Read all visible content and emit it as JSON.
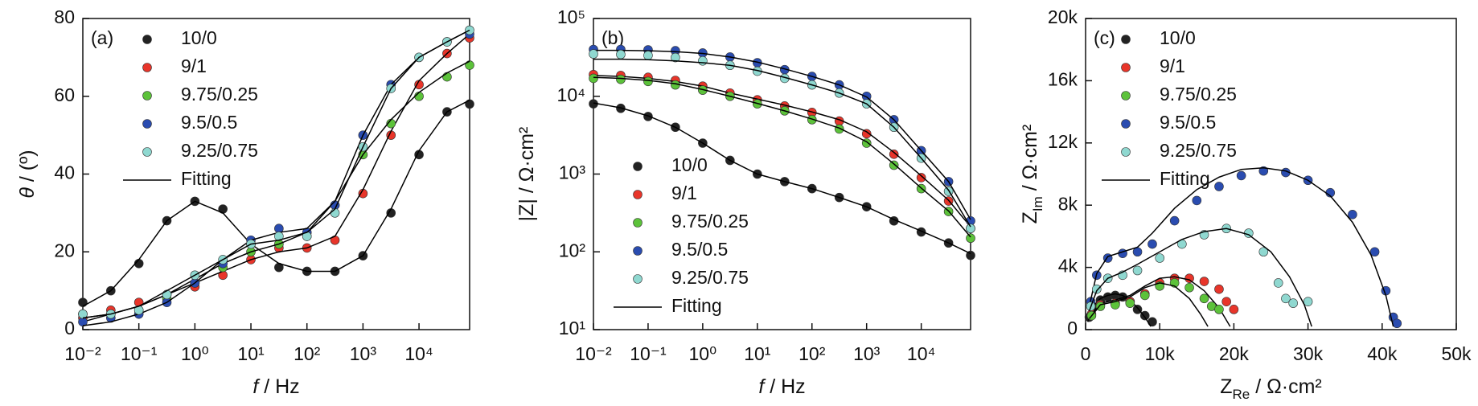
{
  "chart_data": [
    {
      "type": "line",
      "title": "(a)",
      "xscale": "log",
      "legend": "upper left",
      "fit_name": "Fitting",
      "fit_color": "#000000",
      "x_label": [
        "f",
        " / Hz"
      ],
      "y_label": [
        "θ",
        " / (º)"
      ],
      "xlim": [
        0.01,
        80000
      ],
      "ylim": [
        0,
        80
      ],
      "xticks": [
        {
          "value": 0.01,
          "label": "10⁻²"
        },
        {
          "value": 0.1,
          "label": "10⁻¹"
        },
        {
          "value": 1,
          "label": "10⁰"
        },
        {
          "value": 10,
          "label": "10¹"
        },
        {
          "value": 100,
          "label": "10²"
        },
        {
          "value": 1000,
          "label": "10³"
        },
        {
          "value": 10000,
          "label": "10⁴"
        }
      ],
      "yticks": [
        0,
        20,
        40,
        60,
        80
      ],
      "x": [
        0.01,
        0.0316,
        0.1,
        0.316,
        1,
        3.16,
        10,
        31.6,
        100,
        316,
        1000,
        3162,
        10000,
        31623,
        80000
      ],
      "series": [
        {
          "name": "10/0",
          "color": "#222222",
          "values": [
            7,
            10,
            17,
            28,
            33,
            31,
            22,
            16,
            15,
            15,
            19,
            30,
            45,
            56,
            58
          ],
          "fit": [
            6,
            10,
            18,
            28,
            33,
            30,
            22,
            17,
            15,
            15,
            19,
            31,
            46,
            56,
            59
          ]
        },
        {
          "name": "9/1",
          "color": "#e8352a",
          "values": [
            3,
            5,
            7,
            9,
            11,
            14,
            18,
            21,
            21,
            23,
            35,
            50,
            63,
            71,
            75
          ],
          "fit": [
            2,
            4,
            6,
            9,
            12,
            15,
            18,
            20,
            21,
            24,
            36,
            51,
            64,
            71,
            76
          ]
        },
        {
          "name": "9.75/0.25",
          "color": "#5cc23a",
          "values": [
            4,
            4,
            5,
            8,
            12,
            16,
            20,
            22,
            24,
            32,
            45,
            53,
            60,
            65,
            68
          ],
          "fit": [
            3,
            4,
            6,
            9,
            13,
            17,
            20,
            22,
            25,
            33,
            45,
            54,
            61,
            66,
            69
          ]
        },
        {
          "name": "9.5/0.5",
          "color": "#2a4cb0",
          "values": [
            2,
            3,
            4,
            7,
            12,
            17,
            23,
            26,
            25,
            32,
            50,
            63,
            70,
            74,
            76
          ],
          "fit": [
            1,
            2,
            4,
            7,
            12,
            18,
            23,
            25,
            26,
            33,
            50,
            63,
            70,
            74,
            77
          ]
        },
        {
          "name": "9.25/0.75",
          "color": "#8fd8d0",
          "values": [
            4,
            4,
            5,
            9,
            14,
            18,
            22,
            24,
            24,
            30,
            47,
            62,
            70,
            74,
            77
          ],
          "fit": [
            3,
            4,
            6,
            10,
            14,
            18,
            22,
            23,
            25,
            31,
            47,
            62,
            70,
            74,
            77
          ]
        }
      ]
    },
    {
      "type": "line",
      "title": "(b)",
      "xscale": "log",
      "yscale": "log",
      "legend": "lower left",
      "fit_name": "Fitting",
      "fit_color": "#000000",
      "x_label": [
        "f",
        " / Hz"
      ],
      "y_label": [
        "|Z| / Ω·cm²"
      ],
      "xlim": [
        0.01,
        80000
      ],
      "ylim": [
        10,
        100000
      ],
      "xticks": [
        {
          "value": 0.01,
          "label": "10⁻²"
        },
        {
          "value": 0.1,
          "label": "10⁻¹"
        },
        {
          "value": 1,
          "label": "10⁰"
        },
        {
          "value": 10,
          "label": "10¹"
        },
        {
          "value": 100,
          "label": "10²"
        },
        {
          "value": 1000,
          "label": "10³"
        },
        {
          "value": 10000,
          "label": "10⁴"
        }
      ],
      "yticks": [
        {
          "value": 10,
          "label": "10¹"
        },
        {
          "value": 100,
          "label": "10²"
        },
        {
          "value": 1000,
          "label": "10³"
        },
        {
          "value": 10000,
          "label": "10⁴"
        },
        {
          "value": 100000,
          "label": "10⁵"
        }
      ],
      "x": [
        0.01,
        0.0316,
        0.1,
        0.316,
        1,
        3.16,
        10,
        31.6,
        100,
        316,
        1000,
        3162,
        10000,
        31623,
        80000
      ],
      "series": [
        {
          "name": "10/0",
          "color": "#222222",
          "values": [
            8000,
            7000,
            5500,
            4000,
            2500,
            1500,
            1000,
            800,
            650,
            500,
            380,
            250,
            180,
            130,
            90
          ],
          "fit": [
            8200,
            7100,
            5600,
            4000,
            2500,
            1500,
            1000,
            800,
            650,
            500,
            380,
            260,
            185,
            130,
            95
          ]
        },
        {
          "name": "9/1",
          "color": "#e8352a",
          "values": [
            19000,
            18500,
            17500,
            16000,
            13500,
            11000,
            9000,
            7500,
            6200,
            4800,
            3300,
            1800,
            900,
            450,
            200
          ],
          "fit": [
            18500,
            18000,
            17000,
            15500,
            13500,
            11000,
            9200,
            7700,
            6300,
            5000,
            3500,
            1900,
            950,
            460,
            210
          ]
        },
        {
          "name": "9.75/0.25",
          "color": "#5cc23a",
          "values": [
            17000,
            16500,
            15500,
            14000,
            12000,
            10000,
            8000,
            6500,
            5000,
            3800,
            2500,
            1300,
            650,
            330,
            150
          ],
          "fit": [
            17500,
            17000,
            16000,
            14500,
            12200,
            10000,
            8100,
            6500,
            5100,
            3900,
            2600,
            1350,
            660,
            335,
            155
          ]
        },
        {
          "name": "9.5/0.5",
          "color": "#2a4cb0",
          "values": [
            40000,
            40000,
            39500,
            38500,
            36000,
            32000,
            27000,
            22000,
            18000,
            14000,
            10000,
            5000,
            2000,
            800,
            250
          ],
          "fit": [
            39000,
            39000,
            38500,
            37500,
            35500,
            32000,
            27500,
            22500,
            18000,
            14000,
            9800,
            5000,
            2000,
            800,
            260
          ]
        },
        {
          "name": "9.25/0.75",
          "color": "#8fd8d0",
          "values": [
            35000,
            34500,
            33500,
            31500,
            28500,
            25000,
            21000,
            17000,
            14000,
            11000,
            8000,
            4000,
            1600,
            600,
            200
          ],
          "fit": [
            30000,
            30000,
            29500,
            28500,
            27000,
            25000,
            21500,
            17500,
            14000,
            11000,
            8000,
            4000,
            1600,
            620,
            210
          ]
        }
      ]
    },
    {
      "type": "scatter",
      "title": "(c)",
      "legend": "upper left",
      "fit_name": "Fitting",
      "fit_color": "#000000",
      "x_label": [
        "Z",
        "Re",
        " / Ω·cm²"
      ],
      "y_label": [
        "Z",
        "Im",
        " / Ω·cm²"
      ],
      "xlim": [
        0,
        50000
      ],
      "ylim": [
        0,
        20000
      ],
      "xticks": [
        0,
        {
          "value": 10000,
          "label": "10k"
        },
        {
          "value": 20000,
          "label": "20k"
        },
        {
          "value": 30000,
          "label": "30k"
        },
        {
          "value": 40000,
          "label": "40k"
        },
        {
          "value": 50000,
          "label": "50k"
        }
      ],
      "yticks": [
        0,
        {
          "value": 4000,
          "label": "4k"
        },
        {
          "value": 8000,
          "label": "8k"
        },
        {
          "value": 12000,
          "label": "12k"
        },
        {
          "value": 16000,
          "label": "16k"
        },
        {
          "value": 20000,
          "label": "20k"
        }
      ],
      "series": [
        {
          "name": "10/0",
          "color": "#222222",
          "x": [
            500,
            1000,
            2000,
            3000,
            4000,
            5000,
            6000,
            7000,
            8000,
            9000
          ],
          "values": [
            800,
            1400,
            1900,
            2100,
            2200,
            2100,
            1800,
            1300,
            900,
            500
          ],
          "fit_x": [
            300,
            1000,
            2000,
            3000,
            4000,
            5000,
            6000,
            7000,
            8000,
            8800
          ],
          "fit_y": [
            500,
            1500,
            2000,
            2200,
            2300,
            2200,
            1900,
            1400,
            800,
            200
          ]
        },
        {
          "name": "9/1",
          "color": "#e8352a",
          "x": [
            800,
            2000,
            4000,
            6000,
            8000,
            10000,
            12000,
            14000,
            16000,
            18000,
            19000,
            20000
          ],
          "values": [
            1000,
            1600,
            1700,
            1800,
            2300,
            3000,
            3300,
            3300,
            3100,
            2600,
            1800,
            1300
          ],
          "fit_x": [
            500,
            2000,
            4000,
            6000,
            8000,
            10000,
            12000,
            14000,
            16000,
            18000,
            19500
          ],
          "fit_y": [
            800,
            1700,
            1900,
            2200,
            2800,
            3300,
            3400,
            3200,
            2500,
            1400,
            200
          ]
        },
        {
          "name": "9.75/0.25",
          "color": "#5cc23a",
          "x": [
            800,
            2000,
            4000,
            6000,
            8000,
            10000,
            12000,
            14000,
            16000,
            17000,
            18000
          ],
          "values": [
            900,
            1500,
            1600,
            1700,
            2200,
            2800,
            3000,
            2700,
            2000,
            1500,
            1300
          ],
          "fit_x": [
            500,
            2000,
            4000,
            6000,
            8000,
            10000,
            12000,
            14000,
            15500,
            16500
          ],
          "fit_y": [
            700,
            1600,
            1800,
            2100,
            2700,
            3000,
            2800,
            2000,
            1000,
            200
          ]
        },
        {
          "name": "9.5/0.5",
          "color": "#2a4cb0",
          "x": [
            700,
            1500,
            3000,
            5000,
            7000,
            9000,
            12000,
            15000,
            18000,
            21000,
            24000,
            27000,
            30000,
            33000,
            36000,
            39000,
            40500,
            41500,
            42000
          ],
          "values": [
            1800,
            3500,
            4600,
            4900,
            5000,
            5500,
            7000,
            8300,
            9200,
            9900,
            10200,
            10100,
            9600,
            8800,
            7400,
            5000,
            2500,
            800,
            400
          ],
          "fit_x": [
            500,
            1500,
            3000,
            5000,
            7000,
            9000,
            12000,
            15000,
            18000,
            21000,
            24000,
            27000,
            30000,
            33000,
            36000,
            38500,
            40500,
            41500
          ],
          "fit_y": [
            1500,
            3600,
            4700,
            5000,
            5300,
            6200,
            7800,
            9000,
            9800,
            10300,
            10400,
            10200,
            9600,
            8600,
            6900,
            4800,
            2200,
            200
          ]
        },
        {
          "name": "9.25/0.75",
          "color": "#8fd8d0",
          "x": [
            700,
            1500,
            3000,
            5000,
            7000,
            10000,
            13000,
            16000,
            19000,
            22000,
            24000,
            26000,
            27000,
            28000,
            30000
          ],
          "values": [
            1500,
            2600,
            3300,
            3500,
            3800,
            4600,
            5500,
            6100,
            6500,
            6200,
            5000,
            3000,
            2000,
            1700,
            1800
          ],
          "fit_x": [
            500,
            1500,
            3000,
            5000,
            7000,
            10000,
            13000,
            16000,
            19000,
            22000,
            25000,
            27500,
            29500,
            30500
          ],
          "fit_y": [
            1200,
            2500,
            3300,
            3700,
            4200,
            5000,
            5800,
            6300,
            6500,
            6100,
            5000,
            3400,
            1600,
            200
          ]
        }
      ]
    }
  ]
}
